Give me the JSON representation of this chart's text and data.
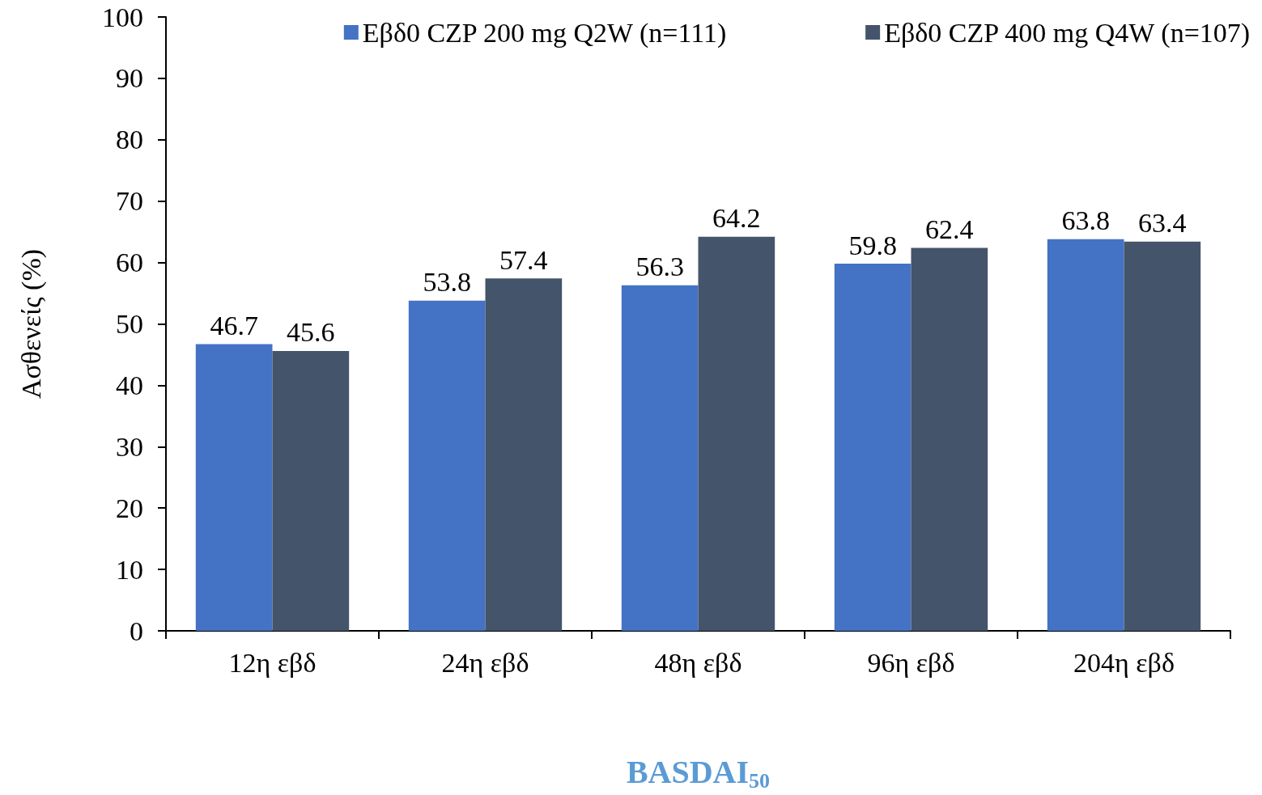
{
  "chart_data": {
    "type": "bar",
    "xlabel": "BASDAI$_{50}$",
    "ylabel": "Ασθενείς (%)",
    "categories": [
      "12η εβδ",
      "24η εβδ",
      "48η εβδ",
      "96η εβδ",
      "204η εβδ"
    ],
    "series": [
      {
        "name": "Εβδ0 CZP 200 mg Q2W (n=111)",
        "color": "#4472c4",
        "values": [
          46.7,
          53.8,
          56.3,
          59.8,
          63.8
        ]
      },
      {
        "name": "Εβδ0 CZP 400 mg Q4W (n=107)",
        "color": "#44546a",
        "values": [
          45.6,
          57.4,
          64.2,
          62.4,
          63.4
        ]
      }
    ],
    "ylim": [
      0,
      100
    ],
    "yticks": [
      0,
      10,
      20,
      30,
      40,
      50,
      60,
      70,
      80,
      90,
      100
    ],
    "grid": false,
    "legend": "top right",
    "data_labels": true
  }
}
